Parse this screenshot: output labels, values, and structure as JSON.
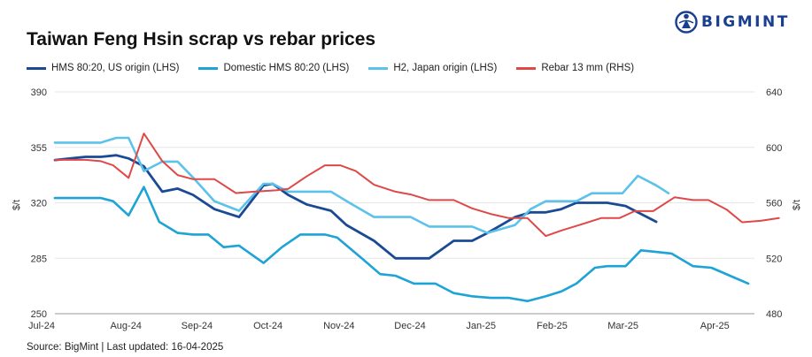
{
  "brand": {
    "name": "BIGMINT",
    "icon": "globe-logo-icon"
  },
  "chart_data": {
    "type": "line",
    "title": "Taiwan Feng Hsin scrap vs rebar prices",
    "source": "Source: BigMint | Last updated: 16-04-2025",
    "ylabel_left": "$/t",
    "ylabel_right": "$/t",
    "ylim_left": [
      250,
      390
    ],
    "ylim_right": [
      480,
      640
    ],
    "yticks_left": [
      250,
      285,
      320,
      355,
      390
    ],
    "yticks_right": [
      480,
      520,
      560,
      600,
      640
    ],
    "x_ticks": [
      "Jul-24",
      "Aug-24",
      "Sep-24",
      "Oct-24",
      "Nov-24",
      "Dec-24",
      "Jan-25",
      "Feb-25",
      "Mar-25",
      "Apr-25"
    ],
    "series": [
      {
        "name": "HMS 80:20, US origin (LHS)",
        "axis": "left",
        "color": "#1a4a94",
        "values": [
          [
            0,
            347
          ],
          [
            0.25,
            348
          ],
          [
            0.5,
            349
          ],
          [
            0.75,
            349
          ],
          [
            1.0,
            350
          ],
          [
            1.2,
            348
          ],
          [
            1.45,
            343
          ],
          [
            1.75,
            327
          ],
          [
            2.0,
            329
          ],
          [
            2.25,
            325
          ],
          [
            2.6,
            316
          ],
          [
            3.0,
            311
          ],
          [
            3.4,
            331
          ],
          [
            3.55,
            332
          ],
          [
            3.8,
            325
          ],
          [
            4.1,
            319
          ],
          [
            4.5,
            315
          ],
          [
            4.75,
            306
          ],
          [
            5.2,
            296
          ],
          [
            5.55,
            285
          ],
          [
            5.8,
            285
          ],
          [
            6.1,
            285
          ],
          [
            6.5,
            296
          ],
          [
            6.8,
            296
          ],
          [
            7.05,
            301
          ],
          [
            7.5,
            311
          ],
          [
            7.75,
            314
          ],
          [
            8.0,
            314
          ],
          [
            8.25,
            316
          ],
          [
            8.5,
            320
          ],
          [
            8.75,
            320
          ],
          [
            9.0,
            320
          ],
          [
            9.3,
            318
          ],
          [
            9.8,
            308
          ]
        ]
      },
      {
        "name": "Domestic HMS 80:20 (LHS)",
        "axis": "left",
        "color": "#1ea3d6",
        "values": [
          [
            0,
            323
          ],
          [
            0.25,
            323
          ],
          [
            0.5,
            323
          ],
          [
            0.75,
            323
          ],
          [
            0.95,
            321
          ],
          [
            1.2,
            312
          ],
          [
            1.45,
            330
          ],
          [
            1.7,
            308
          ],
          [
            2.0,
            301
          ],
          [
            2.25,
            300
          ],
          [
            2.5,
            300
          ],
          [
            2.75,
            292
          ],
          [
            3.0,
            293
          ],
          [
            3.4,
            282
          ],
          [
            3.7,
            292
          ],
          [
            4.0,
            300
          ],
          [
            4.4,
            300
          ],
          [
            4.6,
            298
          ],
          [
            5.0,
            285
          ],
          [
            5.3,
            275
          ],
          [
            5.55,
            274
          ],
          [
            5.85,
            269
          ],
          [
            6.2,
            269
          ],
          [
            6.5,
            263
          ],
          [
            6.8,
            261
          ],
          [
            7.1,
            260
          ],
          [
            7.4,
            260
          ],
          [
            7.7,
            258
          ],
          [
            8.0,
            261
          ],
          [
            8.25,
            264
          ],
          [
            8.5,
            269
          ],
          [
            8.8,
            279
          ],
          [
            9.0,
            280
          ],
          [
            9.3,
            280
          ],
          [
            9.55,
            290
          ],
          [
            9.8,
            289
          ],
          [
            10.05,
            288
          ],
          [
            10.4,
            280
          ],
          [
            10.7,
            279
          ],
          [
            11.0,
            274
          ],
          [
            11.3,
            269
          ]
        ]
      },
      {
        "name": "H2, Japan origin (LHS)",
        "axis": "left",
        "color": "#5cc2ea",
        "values": [
          [
            0,
            358
          ],
          [
            0.25,
            358
          ],
          [
            0.5,
            358
          ],
          [
            0.75,
            358
          ],
          [
            1.0,
            361
          ],
          [
            1.2,
            361
          ],
          [
            1.45,
            340
          ],
          [
            1.75,
            346
          ],
          [
            2.0,
            346
          ],
          [
            2.25,
            336
          ],
          [
            2.6,
            321
          ],
          [
            3.0,
            315
          ],
          [
            3.4,
            332
          ],
          [
            3.55,
            332
          ],
          [
            3.8,
            327
          ],
          [
            4.1,
            327
          ],
          [
            4.5,
            327
          ],
          [
            4.8,
            320
          ],
          [
            5.2,
            311
          ],
          [
            5.55,
            311
          ],
          [
            5.8,
            311
          ],
          [
            6.1,
            305
          ],
          [
            6.5,
            305
          ],
          [
            6.8,
            305
          ],
          [
            7.05,
            301
          ],
          [
            7.5,
            306
          ],
          [
            7.75,
            316
          ],
          [
            8.0,
            321
          ],
          [
            8.25,
            321
          ],
          [
            8.5,
            321
          ],
          [
            8.75,
            326
          ],
          [
            9.0,
            326
          ],
          [
            9.25,
            326
          ],
          [
            9.5,
            337
          ],
          [
            9.8,
            331
          ],
          [
            10.0,
            326
          ]
        ]
      },
      {
        "name": "Rebar 13 mm (RHS)",
        "axis": "right",
        "color": "#e04848",
        "values": [
          [
            0,
            591
          ],
          [
            0.25,
            591
          ],
          [
            0.5,
            591
          ],
          [
            0.75,
            590
          ],
          [
            0.95,
            587
          ],
          [
            1.2,
            578
          ],
          [
            1.45,
            610
          ],
          [
            1.75,
            590
          ],
          [
            2.0,
            580
          ],
          [
            2.25,
            577
          ],
          [
            2.6,
            577
          ],
          [
            2.95,
            567
          ],
          [
            3.25,
            568
          ],
          [
            3.6,
            569
          ],
          [
            3.8,
            570
          ],
          [
            4.1,
            579
          ],
          [
            4.4,
            587
          ],
          [
            4.65,
            587
          ],
          [
            4.9,
            583
          ],
          [
            5.2,
            573
          ],
          [
            5.55,
            568
          ],
          [
            5.8,
            566
          ],
          [
            6.1,
            562
          ],
          [
            6.5,
            562
          ],
          [
            6.8,
            556
          ],
          [
            7.1,
            552
          ],
          [
            7.4,
            549
          ],
          [
            7.7,
            549
          ],
          [
            8.0,
            536
          ],
          [
            8.25,
            540
          ],
          [
            8.55,
            544
          ],
          [
            8.9,
            549
          ],
          [
            9.2,
            549
          ],
          [
            9.45,
            554
          ],
          [
            9.75,
            554
          ],
          [
            10.1,
            564
          ],
          [
            10.4,
            562
          ],
          [
            10.65,
            562
          ],
          [
            10.95,
            555
          ],
          [
            11.2,
            546
          ],
          [
            11.5,
            547
          ],
          [
            11.8,
            549
          ]
        ]
      }
    ]
  }
}
